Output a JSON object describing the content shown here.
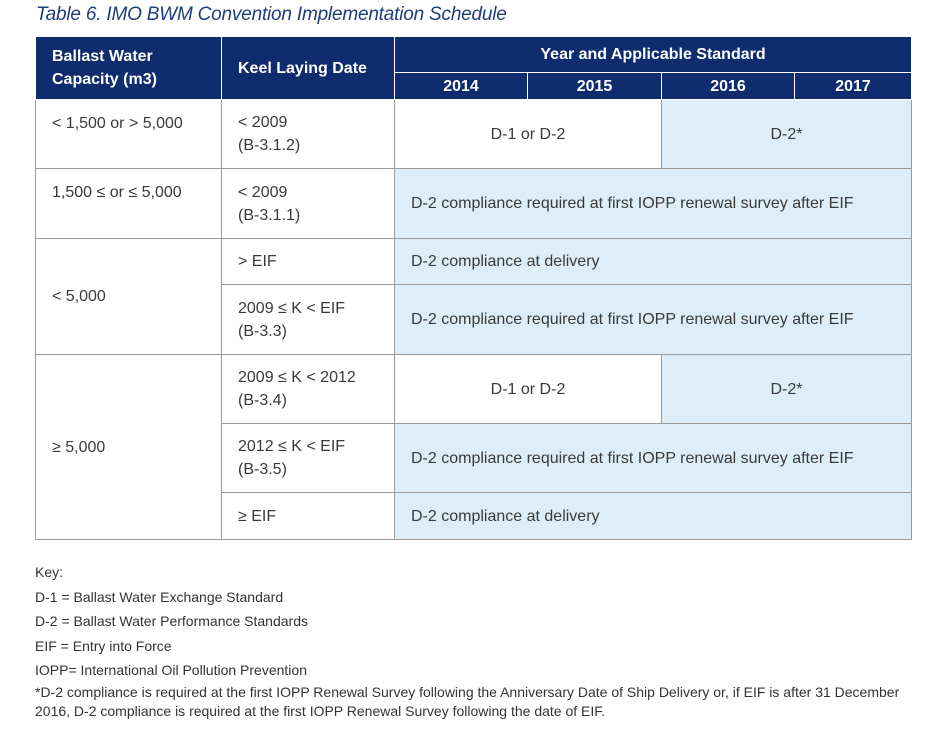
{
  "caption": "Table 6.  IMO BWM Convention Implementation Schedule",
  "header": {
    "capacity": "Ballast Water Capacity (m3)",
    "keel": "Keel Laying Date",
    "year_std": "Year and Applicable Standard",
    "years": [
      "2014",
      "2015",
      "2016",
      "2017"
    ]
  },
  "rows": {
    "r1": {
      "capacity": "< 1,500 or > 5,000",
      "keel": "< 2009",
      "ref": "(B-3.1.2)",
      "a": "D-1 or D-2",
      "b": "D-2*"
    },
    "r2": {
      "capacity": "1,500 ≤ or ≤ 5,000",
      "keel": "< 2009",
      "ref": "(B-3.1.1)",
      "a": "D-2 compliance required at first IOPP renewal survey after EIF"
    },
    "g3": {
      "capacity": "< 5,000",
      "r3a": {
        "keel": "> EIF",
        "a": "D-2 compliance at delivery"
      },
      "r3b": {
        "keel": "2009 ≤ K < EIF",
        "ref": "(B-3.3)",
        "a": "D-2 compliance required at first IOPP renewal survey after EIF"
      }
    },
    "g4": {
      "capacity": "≥ 5,000",
      "r4a": {
        "keel": "2009 ≤ K < 2012",
        "ref": "(B-3.4)",
        "a": "D-1 or D-2",
        "b": "D-2*"
      },
      "r4b": {
        "keel": "2012 ≤ K < EIF",
        "ref": "(B-3.5)",
        "a": "D-2 compliance required at first IOPP renewal survey after EIF"
      },
      "r4c": {
        "keel": "≥ EIF",
        "a": "D-2 compliance at delivery"
      }
    }
  },
  "key": {
    "title": "Key:",
    "d1": "D-1 = Ballast Water Exchange Standard",
    "d2": "D-2 = Ballast Water Performance Standards",
    "eif": "EIF = Entry into Force",
    "iopp": "IOPP= International Oil Pollution Prevention",
    "note": "*D-2 compliance is required at the first IOPP Renewal Survey following the Anniversary Date of Ship Delivery or, if EIF is after 31 December 2016, D-2 compliance is required at the first IOPP Renewal Survey following the date of EIF."
  },
  "colors": {
    "header_bg": "#0f2d6e",
    "highlight": "#ddeef8"
  }
}
